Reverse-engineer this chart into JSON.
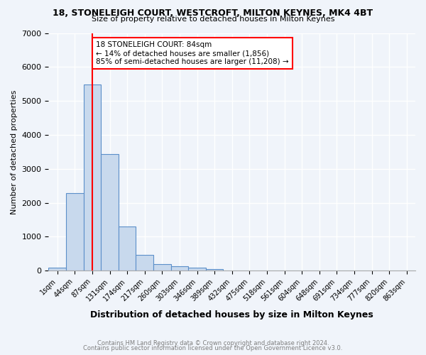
{
  "title_line1": "18, STONELEIGH COURT, WESTCROFT, MILTON KEYNES, MK4 4BT",
  "title_line2": "Size of property relative to detached houses in Milton Keynes",
  "xlabel": "Distribution of detached houses by size in Milton Keynes",
  "ylabel": "Number of detached properties",
  "bin_labels": [
    "1sqm",
    "44sqm",
    "87sqm",
    "131sqm",
    "174sqm",
    "217sqm",
    "260sqm",
    "303sqm",
    "346sqm",
    "389sqm",
    "432sqm",
    "475sqm",
    "518sqm",
    "561sqm",
    "604sqm",
    "648sqm",
    "691sqm",
    "734sqm",
    "777sqm",
    "820sqm",
    "863sqm"
  ],
  "bar_heights": [
    80,
    2280,
    5480,
    3430,
    1310,
    460,
    190,
    120,
    80,
    50,
    0,
    0,
    0,
    0,
    0,
    0,
    0,
    0,
    0,
    0,
    0
  ],
  "bar_color": "#c8d9ed",
  "bar_edge_color": "#5b8fc9",
  "red_line_x": 2,
  "annotation_text": "18 STONELEIGH COURT: 84sqm\n← 14% of detached houses are smaller (1,856)\n85% of semi-detached houses are larger (11,208) →",
  "annotation_box_color": "white",
  "annotation_box_edge_color": "red",
  "ylim": [
    0,
    7000
  ],
  "yticks": [
    0,
    1000,
    2000,
    3000,
    4000,
    5000,
    6000,
    7000
  ],
  "footer_line1": "Contains HM Land Registry data © Crown copyright and database right 2024.",
  "footer_line2": "Contains public sector information licensed under the Open Government Licence v3.0.",
  "bg_color": "#f0f4fa",
  "grid_color": "white"
}
